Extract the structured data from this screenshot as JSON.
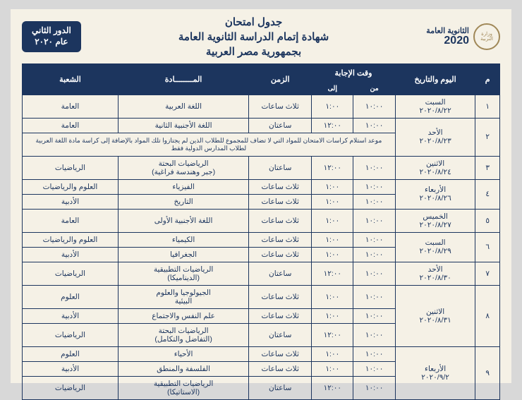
{
  "header": {
    "logo_line1": "الثانوية العامة",
    "logo_year": "2020",
    "title1": "جدول امتحان",
    "title2": "شهادة إتمام الدراسة الثانوية العامة",
    "title3": "بجمهورية مصر العربية",
    "badge1": "الدور الثاني",
    "badge2": "عام ٢٠٢٠"
  },
  "columns": {
    "idx": "م",
    "day": "اليوم والتاريخ",
    "time": "وقت الإجابة",
    "from": "من",
    "to": "إلى",
    "duration": "الزمن",
    "subject": "المــــــــادة",
    "branch": "الشعبة"
  },
  "note": "موعد استلام كراسات الامتحان للمواد التي لا تضاف للمجموع للطلاب الذين لم يجتازوا تلك المواد بالإضافة إلى كراسة مادة اللغة العربية لطلاب المدارس الدولية فقط",
  "rows": [
    {
      "idx": "١",
      "day": "السبت\n٢٠٢٠/٨/٢٢",
      "sessions": [
        {
          "from": "١٠:٠٠",
          "to": "١:٠٠",
          "dur": "ثلاث ساعات",
          "subj": "اللغة العربية",
          "br": "العامة"
        }
      ]
    },
    {
      "idx": "٢",
      "day": "الأحد\n٢٠٢٠/٨/٢٣",
      "sessions": [
        {
          "from": "١٠:٠٠",
          "to": "١٢:٠٠",
          "dur": "ساعتان",
          "subj": "اللغة الأجنبية الثانية",
          "br": "العامة"
        }
      ],
      "note": true
    },
    {
      "idx": "٣",
      "day": "الاثنين\n٢٠٢٠/٨/٢٤",
      "sessions": [
        {
          "from": "١٠:٠٠",
          "to": "١٢:٠٠",
          "dur": "ساعتان",
          "subj": "الرياضيات البحتة\n(جبر وهندسة فراغية)",
          "br": "الرياضيات"
        }
      ]
    },
    {
      "idx": "٤",
      "day": "الأربعاء\n٢٠٢٠/٨/٢٦",
      "sessions": [
        {
          "from": "١٠:٠٠",
          "to": "١:٠٠",
          "dur": "ثلاث ساعات",
          "subj": "الفيزياء",
          "br": "العلوم والرياضيات"
        },
        {
          "from": "١٠:٠٠",
          "to": "١:٠٠",
          "dur": "ثلاث ساعات",
          "subj": "التاريخ",
          "br": "الأدبية"
        }
      ]
    },
    {
      "idx": "٥",
      "day": "الخميس\n٢٠٢٠/٨/٢٧",
      "sessions": [
        {
          "from": "١٠:٠٠",
          "to": "١:٠٠",
          "dur": "ثلاث ساعات",
          "subj": "اللغة الأجنبية الأولى",
          "br": "العامة"
        }
      ]
    },
    {
      "idx": "٦",
      "day": "السبت\n٢٠٢٠/٨/٢٩",
      "sessions": [
        {
          "from": "١٠:٠٠",
          "to": "١:٠٠",
          "dur": "ثلاث ساعات",
          "subj": "الكيمياء",
          "br": "العلوم والرياضيات"
        },
        {
          "from": "١٠:٠٠",
          "to": "١:٠٠",
          "dur": "ثلاث ساعات",
          "subj": "الجغرافيا",
          "br": "الأدبية"
        }
      ]
    },
    {
      "idx": "٧",
      "day": "الأحد\n٢٠٢٠/٨/٣٠",
      "sessions": [
        {
          "from": "١٠:٠٠",
          "to": "١٢:٠٠",
          "dur": "ساعتان",
          "subj": "الرياضيات التطبيقية\n(الديناميكا)",
          "br": "الرياضيات"
        }
      ]
    },
    {
      "idx": "٨",
      "day": "الاثنين\n٢٠٢٠/٨/٣١",
      "sessions": [
        {
          "from": "١٠:٠٠",
          "to": "١:٠٠",
          "dur": "ثلاث ساعات",
          "subj": "الجيولوجيا والعلوم\nالبيئية",
          "br": "العلوم"
        },
        {
          "from": "١٠:٠٠",
          "to": "١:٠٠",
          "dur": "ثلاث ساعات",
          "subj": "علم النفس والاجتماع",
          "br": "الأدبية"
        },
        {
          "from": "١٠:٠٠",
          "to": "١٢:٠٠",
          "dur": "ساعتان",
          "subj": "الرياضيات البحتة\n(التفاضل والتكامل)",
          "br": "الرياضيات"
        }
      ]
    },
    {
      "idx": "٩",
      "day": "الأربعاء\n٢٠٢٠/٩/٢",
      "sessions": [
        {
          "from": "١٠:٠٠",
          "to": "١:٠٠",
          "dur": "ثلاث ساعات",
          "subj": "الأحياء",
          "br": "العلوم"
        },
        {
          "from": "١٠:٠٠",
          "to": "١:٠٠",
          "dur": "ثلاث ساعات",
          "subj": "الفلسفة والمنطق",
          "br": "الأدبية"
        },
        {
          "from": "١٠:٠٠",
          "to": "١٢:٠٠",
          "dur": "ساعتان",
          "subj": "الرياضيات التطبيقية\n(الاستاتيكا)",
          "br": "الرياضيات"
        }
      ]
    }
  ]
}
